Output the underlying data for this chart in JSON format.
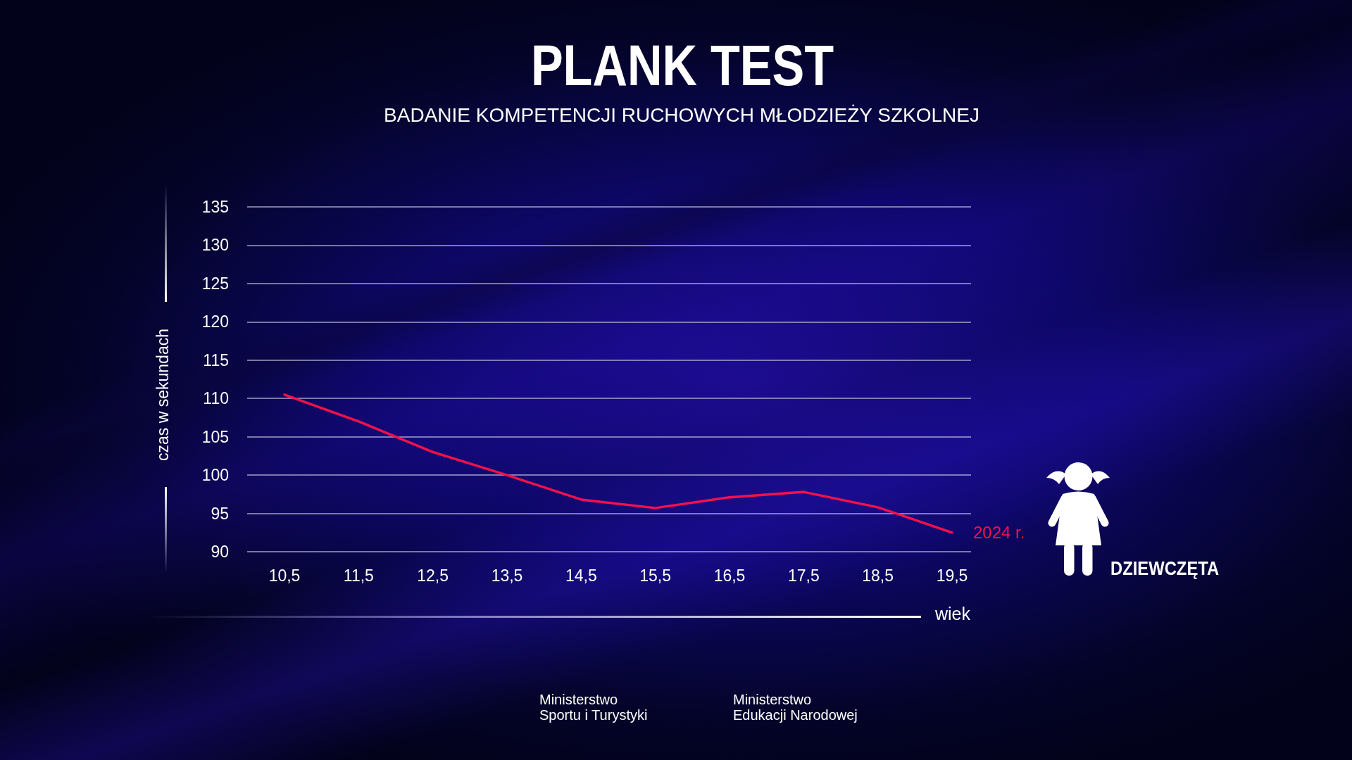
{
  "chart_data": {
    "type": "line",
    "title": "PLANK TEST",
    "subtitle": "BADANIE KOMPETENCJI RUCHOWYCH MŁODZIEŻY SZKOLNEJ",
    "xlabel": "wiek",
    "ylabel": "czas w sekundach",
    "categories": [
      "10,5",
      "11,5",
      "12,5",
      "13,5",
      "14,5",
      "15,5",
      "16,5",
      "17,5",
      "18,5",
      "19,5"
    ],
    "series": [
      {
        "name": "2024 r.",
        "color": "#f8104a",
        "values": [
          110.5,
          107,
          103,
          100,
          96.8,
          95.7,
          97.1,
          97.8,
          95.8,
          92.5
        ]
      }
    ],
    "ylim": [
      90,
      135
    ],
    "yticks": [
      90,
      95,
      100,
      105,
      110,
      115,
      120,
      125,
      130,
      135
    ],
    "grid": "y",
    "legend": false,
    "marker": "none",
    "line_style": "solid",
    "annotations": [
      "DZIEWCZĘTA",
      "Ministerstwo Sportu i Turystyki",
      "Ministerstwo Edukacji Narodowej"
    ]
  }
}
